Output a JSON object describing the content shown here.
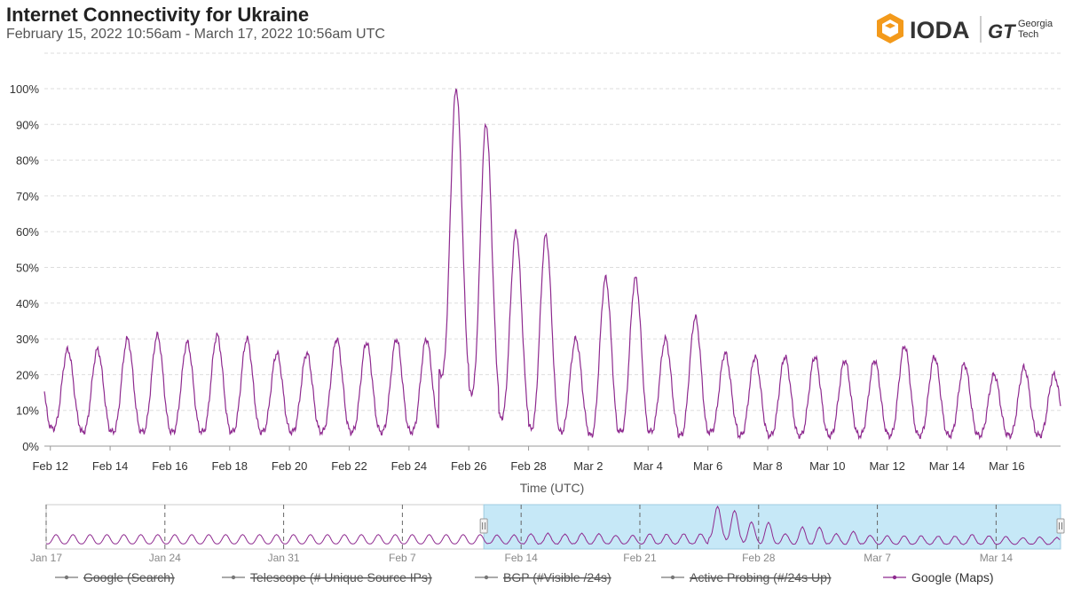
{
  "header": {
    "title": "Internet Connectivity for Ukraine",
    "subtitle": "February 15, 2022 10:56am - March 17, 2022 10:56am UTC"
  },
  "logo": {
    "ioda_text": "IODA",
    "gt_text": "GT",
    "georgia_text": "Georgia",
    "tech_text": "Tech"
  },
  "colors": {
    "series": "#8e2a8f",
    "grid": "#dddddd",
    "navigator_fill": "#c6e8f7",
    "navigator_border": "#9fcbe0"
  },
  "chart_data": {
    "type": "line",
    "title": "Internet Connectivity for Ukraine",
    "xlabel": "Time (UTC)",
    "ylabel": "",
    "x_ticks": [
      "Feb 12",
      "Feb 14",
      "Feb 16",
      "Feb 18",
      "Feb 20",
      "Feb 22",
      "Feb 24",
      "Feb 26",
      "Feb 28",
      "Mar 2",
      "Mar 4",
      "Mar 6",
      "Mar 8",
      "Mar 10",
      "Mar 12",
      "Mar 14",
      "Mar 16"
    ],
    "y_ticks": [
      "0%",
      "10%",
      "20%",
      "30%",
      "40%",
      "50%",
      "60%",
      "70%",
      "80%",
      "90%",
      "100%"
    ],
    "ylim": [
      0,
      100
    ],
    "x_range_days": [
      -0.2,
      33.8
    ],
    "series": [
      {
        "name": "Google (Maps)",
        "daily_peaks": [
          27,
          27,
          30,
          31,
          29,
          31,
          30,
          26,
          26,
          30,
          29,
          30,
          30,
          100,
          90,
          60,
          59,
          30,
          47,
          47,
          30,
          36,
          26,
          25,
          25,
          25,
          24,
          24,
          28,
          25,
          23,
          20,
          22,
          20
        ],
        "daily_mins": [
          5,
          4,
          4,
          4,
          4,
          4,
          4,
          4,
          4,
          4,
          4,
          4,
          4,
          20,
          15,
          8,
          5,
          4,
          3,
          4,
          4,
          3,
          4,
          3,
          3,
          3,
          3,
          3,
          3,
          3,
          3,
          3,
          3,
          3
        ]
      }
    ],
    "legend": [
      {
        "label": "Google (Search)",
        "enabled": false
      },
      {
        "label": "Telescope (# Unique Source IPs)",
        "enabled": false
      },
      {
        "label": "BGP (#Visible /24s)",
        "enabled": false
      },
      {
        "label": "Active Probing (#/24s Up)",
        "enabled": false
      },
      {
        "label": "Google (Maps)",
        "enabled": true
      }
    ],
    "navigator": {
      "ticks": [
        "Jan 17",
        "Jan 24",
        "Jan 31",
        "Feb 7",
        "Feb 14",
        "Feb 21",
        "Feb 28",
        "Mar 7",
        "Mar 14"
      ],
      "range_days": [
        -26,
        33.8
      ],
      "selected_days": [
        -0.2,
        33.8
      ]
    }
  }
}
